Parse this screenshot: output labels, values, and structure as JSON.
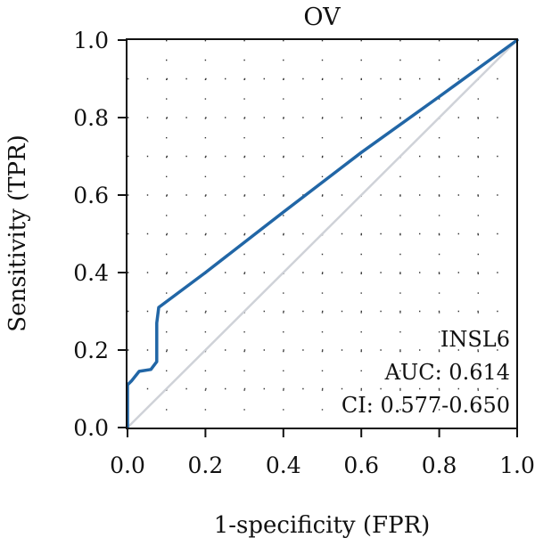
{
  "chart_data": {
    "type": "line",
    "title": "OV",
    "xlabel": "1-specificity (FPR)",
    "ylabel": "Sensitivity (TPR)",
    "xlim": [
      0.0,
      1.0
    ],
    "ylim": [
      0.0,
      1.0
    ],
    "x_ticks": [
      "0.0",
      "0.2",
      "0.4",
      "0.6",
      "0.8",
      "1.0"
    ],
    "y_ticks": [
      "0.0",
      "0.2",
      "0.4",
      "0.6",
      "0.8",
      "1.0"
    ],
    "grid": true,
    "series": [
      {
        "name": "INSL6",
        "color": "#2166a6",
        "x": [
          0.0,
          0.0,
          0.01,
          0.03,
          0.06,
          0.075,
          0.075,
          0.08,
          0.2,
          0.4,
          0.6,
          0.8,
          1.0
        ],
        "y": [
          0.0,
          0.11,
          0.12,
          0.145,
          0.15,
          0.17,
          0.27,
          0.31,
          0.4,
          0.556,
          0.71,
          0.854,
          1.0
        ]
      },
      {
        "color": "#cfd2d8",
        "x": [
          0.0,
          1.0
        ],
        "y": [
          0.0,
          1.0
        ]
      }
    ],
    "annotations": {
      "gene": "INSL6",
      "auc": "AUC: 0.614",
      "ci": "CI: 0.577-0.650"
    }
  }
}
